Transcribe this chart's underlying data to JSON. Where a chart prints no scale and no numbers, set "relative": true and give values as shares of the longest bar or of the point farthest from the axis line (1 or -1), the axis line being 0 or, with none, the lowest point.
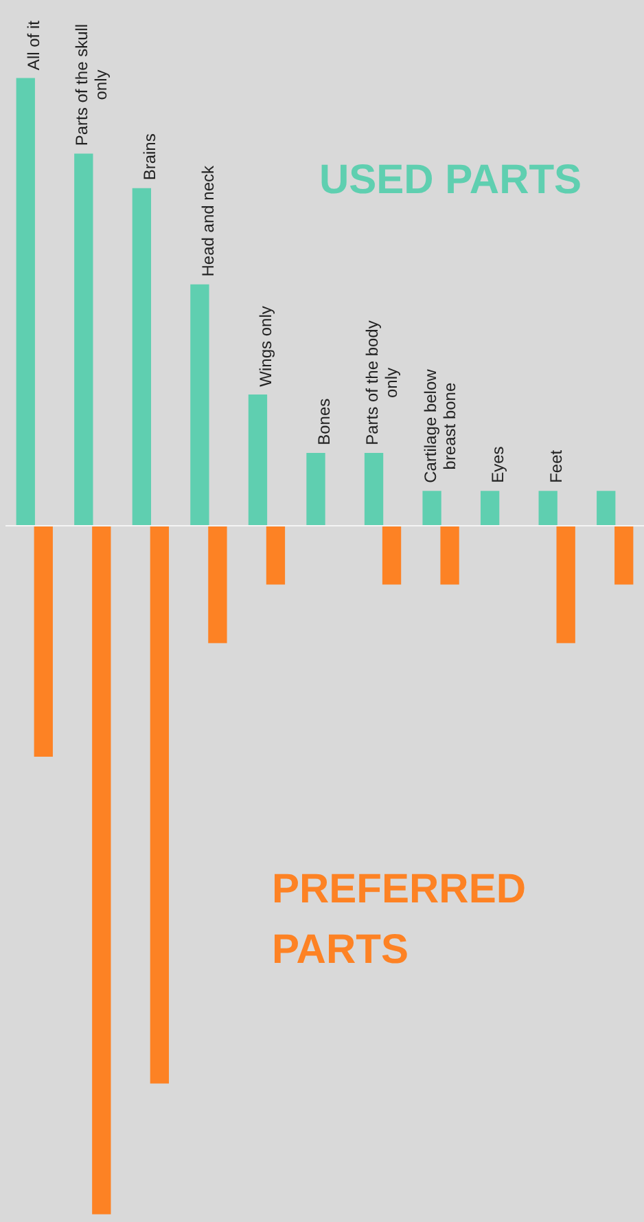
{
  "chart_data": {
    "type": "bar",
    "relative": true,
    "categories": [
      "All of it",
      "Parts of the skull only",
      "Brains",
      "Head and neck",
      "Wings only",
      "Bones",
      "Parts of the body only",
      "Cartilage below breast bone",
      "Eyes",
      "Feet",
      null
    ],
    "series": [
      {
        "name": "USED PARTS",
        "color": "#5fcfb0",
        "values": [
          0.65,
          0.54,
          0.49,
          0.35,
          0.19,
          0.105,
          0.105,
          0.05,
          0.05,
          0.05,
          0.05
        ]
      },
      {
        "name": "PREFERRED PARTS",
        "color": "#fd8224",
        "values": [
          -0.335,
          -1,
          -0.81,
          -0.17,
          -0.085,
          0,
          -0.085,
          -0.085,
          0,
          -0.17,
          -0.085
        ]
      }
    ]
  }
}
